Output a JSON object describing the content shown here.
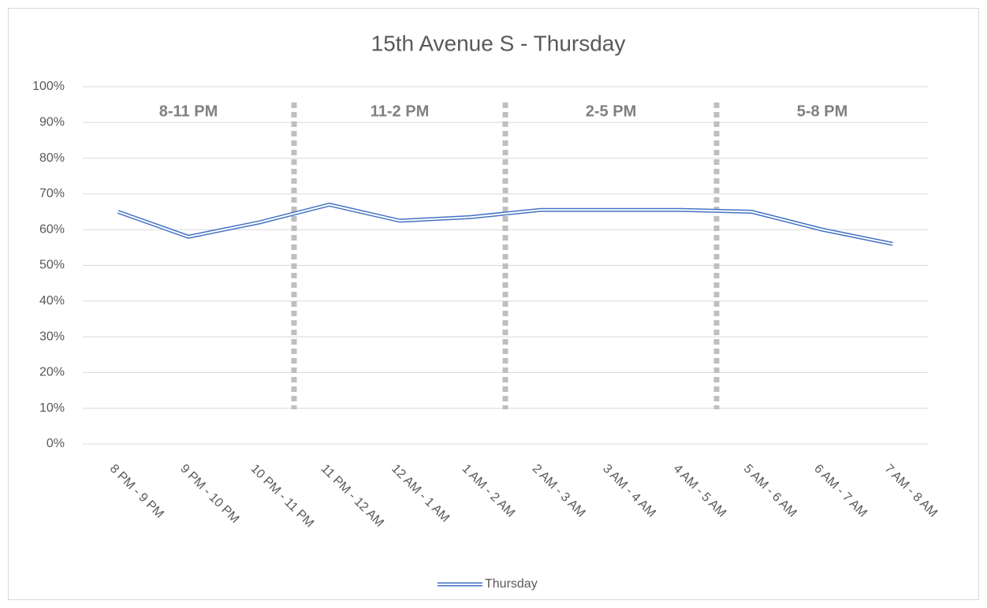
{
  "chart_data": {
    "type": "line",
    "title": "15th Avenue S -  Thursday",
    "categories": [
      "8 PM - 9 PM",
      "9 PM - 10 PM",
      "10 PM - 11 PM",
      "11 PM - 12 AM",
      "12 AM - 1 AM",
      "1 AM - 2 AM",
      "2 AM - 3 AM",
      "3 AM - 4 AM",
      "4 AM - 5 AM",
      "5 AM - 6 AM",
      "6 AM - 7 AM",
      "7 AM - 8 AM"
    ],
    "series": [
      {
        "name": "Thursday",
        "color": "#4472c4",
        "values": [
          65,
          58,
          62,
          67,
          62.5,
          63.5,
          65.5,
          65.5,
          65.5,
          65,
          60,
          56
        ]
      }
    ],
    "ylim": [
      0,
      100
    ],
    "yticks": [
      {
        "value": 0,
        "label": "0%"
      },
      {
        "value": 10,
        "label": "10%"
      },
      {
        "value": 20,
        "label": "20%"
      },
      {
        "value": 30,
        "label": "30%"
      },
      {
        "value": 40,
        "label": "40%"
      },
      {
        "value": 50,
        "label": "50%"
      },
      {
        "value": 60,
        "label": "60%"
      },
      {
        "value": 70,
        "label": "70%"
      },
      {
        "value": 80,
        "label": "80%"
      },
      {
        "value": 90,
        "label": "90%"
      },
      {
        "value": 100,
        "label": "100%"
      }
    ],
    "grid": true,
    "legend": "bottom",
    "annotations": [
      "8-11 PM",
      "11-2 PM",
      "2-5 PM",
      "5-8 PM"
    ]
  }
}
